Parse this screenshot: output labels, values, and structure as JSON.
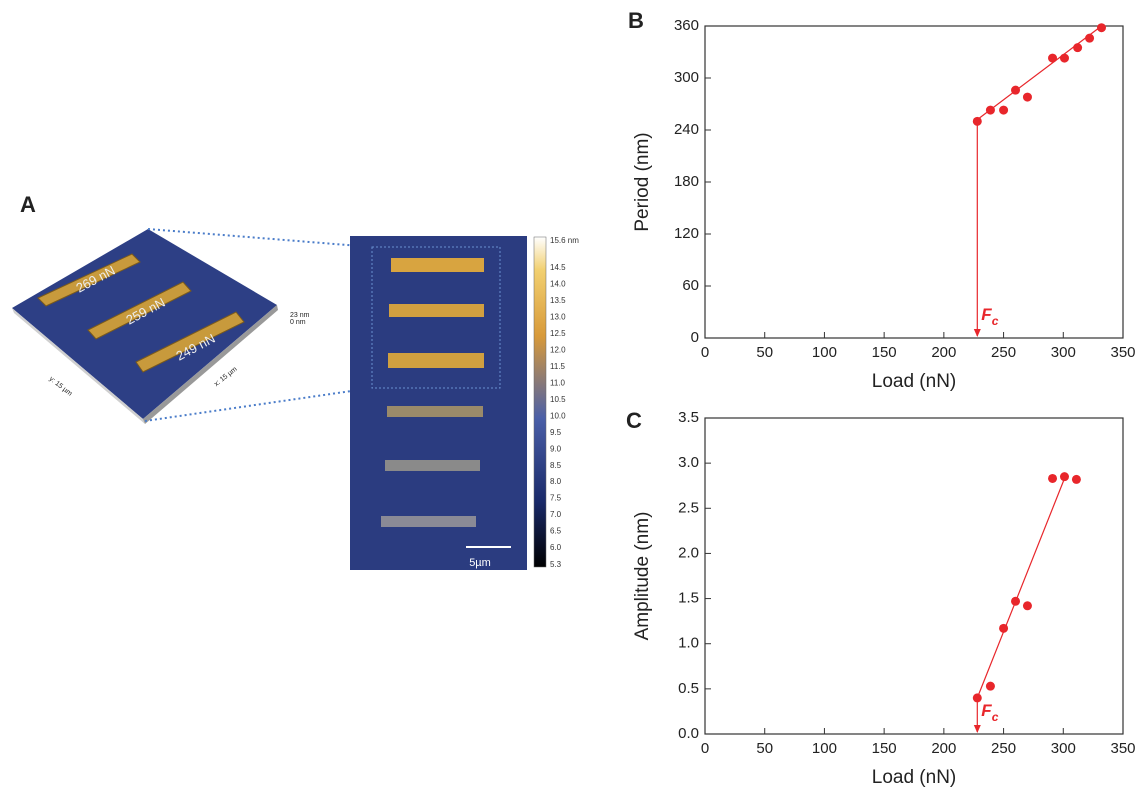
{
  "panel_a": {
    "label": "A",
    "loads": [
      "269 nN",
      "259 nN",
      "249 nN"
    ],
    "z_max": "23 nm",
    "z_min": "0 nm",
    "y_axis": "y: 15 µm",
    "x_axis": "x: 15 µm",
    "colorbar": [
      "15.6 nm",
      "14.5",
      "14.0",
      "13.5",
      "13.0",
      "12.5",
      "12.0",
      "11.5",
      "11.0",
      "10.5",
      "10.0",
      "9.5",
      "9.0",
      "8.5",
      "8.0",
      "7.5",
      "7.0",
      "6.5",
      "6.0",
      "5.3"
    ],
    "scale_bar": "5µm"
  },
  "chart_data": [
    {
      "type": "scatter",
      "panel": "B",
      "x_label": "Load (nN)",
      "y_label": "Period (nm)",
      "color": "#e8262b",
      "x": [
        228,
        239,
        250,
        260,
        270,
        291,
        301,
        312,
        322,
        332
      ],
      "values": [
        250,
        263,
        263,
        286,
        278,
        323,
        323,
        335,
        346,
        358
      ],
      "fit": {
        "x": [
          228,
          332
        ],
        "values": [
          252,
          360
        ]
      },
      "threshold_x": 228,
      "annotation": "F",
      "annotation_sub": "c",
      "xlim": [
        0,
        350
      ],
      "xticks": [
        0,
        50,
        100,
        150,
        200,
        250,
        300,
        350
      ],
      "ylim": [
        0,
        360
      ],
      "yticks": [
        0,
        60,
        120,
        180,
        240,
        300,
        360
      ]
    },
    {
      "type": "scatter",
      "panel": "C",
      "x_label": "Load (nN)",
      "y_label": "Amplitude (nm)",
      "color": "#e8262b",
      "x": [
        228,
        239,
        250,
        260,
        270,
        291,
        301,
        311
      ],
      "values": [
        0.4,
        0.53,
        1.17,
        1.47,
        1.42,
        2.83,
        2.85,
        2.82
      ],
      "fit": {
        "x": [
          228,
          301
        ],
        "values": [
          0.4,
          2.83
        ]
      },
      "threshold_x": 228,
      "annotation": "F",
      "annotation_sub": "c",
      "xlim": [
        0,
        350
      ],
      "xticks": [
        0,
        50,
        100,
        150,
        200,
        250,
        300,
        350
      ],
      "ylim": [
        0,
        3.5
      ],
      "yticks": [
        {
          "value": 0,
          "label": "0.0"
        },
        0.5,
        {
          "value": 1,
          "label": "1.0"
        },
        1.5,
        {
          "value": 2,
          "label": "2.0"
        },
        2.5,
        {
          "value": 3,
          "label": "3.0"
        },
        3.5
      ]
    }
  ]
}
